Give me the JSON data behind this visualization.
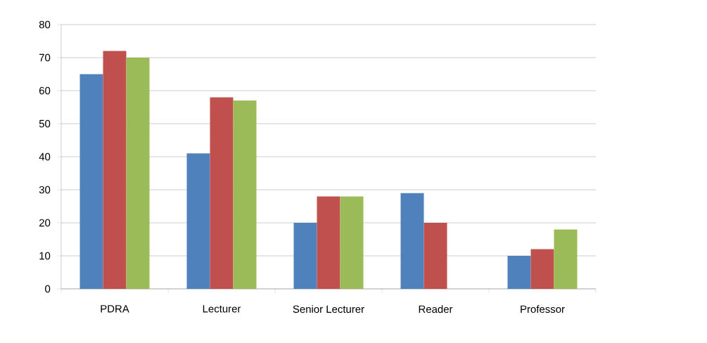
{
  "chart_data": {
    "type": "bar",
    "categories": [
      "PDRA",
      "Lecturer",
      "Senior Lecturer",
      "Reader",
      "Professor"
    ],
    "series": [
      {
        "color": "#4f81bd",
        "values": [
          65,
          41,
          20,
          29,
          10
        ]
      },
      {
        "color": "#c0504d",
        "values": [
          72,
          58,
          28,
          20,
          12
        ]
      },
      {
        "color": "#9bbb59",
        "values": [
          70,
          57,
          28,
          null,
          18
        ]
      }
    ],
    "ylim": [
      0,
      80
    ],
    "yticks": [
      0,
      10,
      20,
      30,
      40,
      50,
      60,
      70,
      80
    ],
    "grid": "y"
  }
}
